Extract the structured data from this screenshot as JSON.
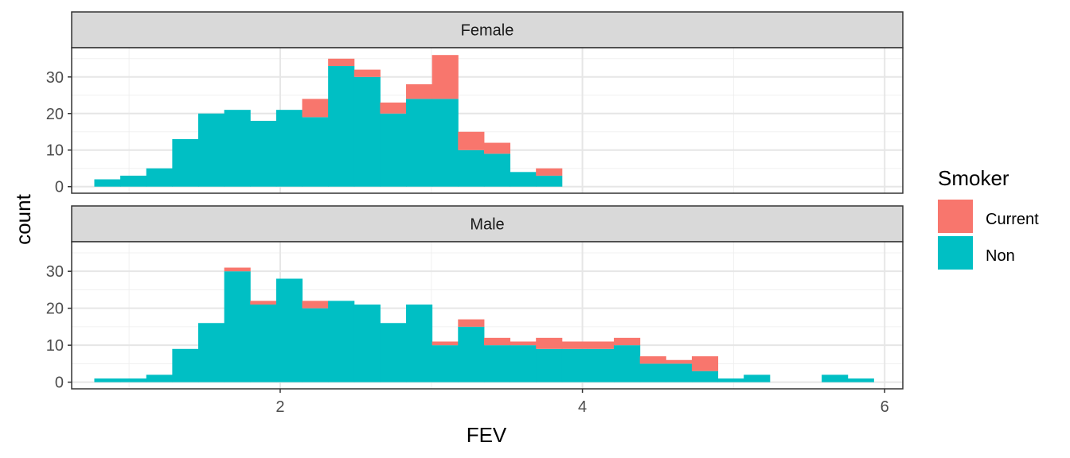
{
  "chart_data": {
    "type": "bar",
    "subtype": "stacked-histogram-faceted",
    "xlabel": "FEV",
    "ylabel": "count",
    "xlim": [
      0.62,
      6.12
    ],
    "ylim": [
      0,
      38
    ],
    "x_ticks": [
      2,
      4,
      6
    ],
    "y_ticks": [
      0,
      10,
      20,
      30
    ],
    "grid": true,
    "bins": {
      "start": 0.77,
      "width": 0.1719,
      "count": 30
    },
    "legend": {
      "title": "Smoker",
      "position": "right",
      "entries": [
        {
          "label": "Current",
          "color": "#F8766D"
        },
        {
          "label": "Non",
          "color": "#00BFC4"
        }
      ]
    },
    "series_colors": {
      "Current": "#F8766D",
      "Non": "#00BFC4"
    },
    "panels": [
      {
        "label": "Female",
        "non": [
          2,
          3,
          5,
          13,
          20,
          21,
          18,
          21,
          19,
          33,
          30,
          20,
          24,
          24,
          10,
          9,
          4,
          3,
          0,
          0,
          0,
          0,
          0,
          0,
          0,
          0,
          0,
          0,
          0,
          0
        ],
        "current": [
          0,
          0,
          0,
          0,
          0,
          0,
          0,
          0,
          5,
          2,
          2,
          3,
          4,
          12,
          5,
          3,
          0,
          2,
          0,
          0,
          0,
          0,
          0,
          0,
          0,
          0,
          0,
          0,
          0,
          0
        ]
      },
      {
        "label": "Male",
        "non": [
          1,
          1,
          2,
          9,
          16,
          30,
          21,
          28,
          20,
          22,
          21,
          16,
          21,
          10,
          15,
          10,
          10,
          9,
          9,
          9,
          10,
          5,
          5,
          3,
          1,
          2,
          0,
          0,
          2,
          1
        ],
        "current": [
          0,
          0,
          0,
          0,
          0,
          1,
          1,
          0,
          2,
          0,
          0,
          0,
          0,
          1,
          2,
          2,
          1,
          3,
          2,
          2,
          2,
          2,
          1,
          4,
          0,
          0,
          0,
          0,
          0,
          0
        ]
      }
    ]
  }
}
